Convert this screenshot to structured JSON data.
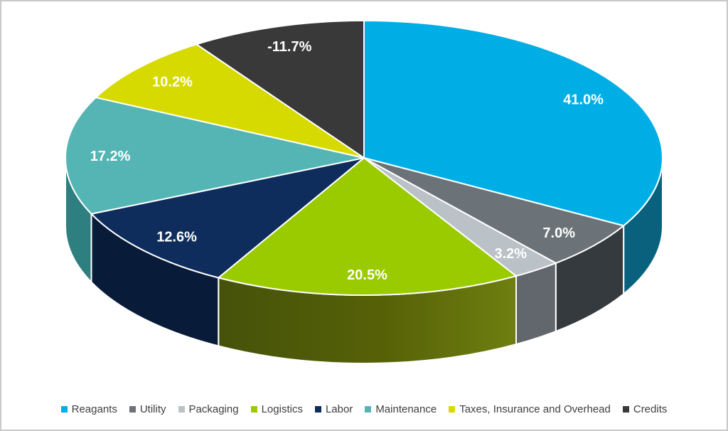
{
  "chart_data": {
    "type": "pie",
    "projection": "3d",
    "title": "",
    "legend_position": "bottom",
    "background": "#FFFFFF",
    "frame_border_color": "#C9C9C9",
    "data_label_color": "#FFFFFF",
    "legend_text_color": "#3F3F3F",
    "slices": [
      {
        "label": "Reagants",
        "value": 41.0,
        "display": "41.0%",
        "color": "#00AEE6",
        "side_color": "#0A617E"
      },
      {
        "label": "Utility",
        "value": 7.0,
        "display": "7.0%",
        "color": "#6B7378",
        "side_color": "#353A3E"
      },
      {
        "label": "Packaging",
        "value": 3.2,
        "display": "3.2%",
        "color": "#BAC1C7",
        "side_color": "#61676C"
      },
      {
        "label": "Logistics",
        "value": 20.5,
        "display": "20.5%",
        "color": "#9ACA00",
        "side_color": "#566107",
        "side_gradient": [
          "#46520A",
          "#6F7F10"
        ]
      },
      {
        "label": "Labor",
        "value": 12.6,
        "display": "12.6%",
        "color": "#0E2D5C",
        "side_color": "#081C3A"
      },
      {
        "label": "Maintenance",
        "value": 17.2,
        "display": "17.2%",
        "color": "#55B5B5",
        "side_color": "#2E7F7F"
      },
      {
        "label": "Taxes, Insurance and Overhead",
        "value": 10.2,
        "display": "10.2%",
        "color": "#D6DA00",
        "side_color": "#8A8D00"
      },
      {
        "label": "Credits",
        "value": -11.7,
        "display": "-11.7%",
        "color": "#393939",
        "side_color": "#222222"
      }
    ]
  }
}
